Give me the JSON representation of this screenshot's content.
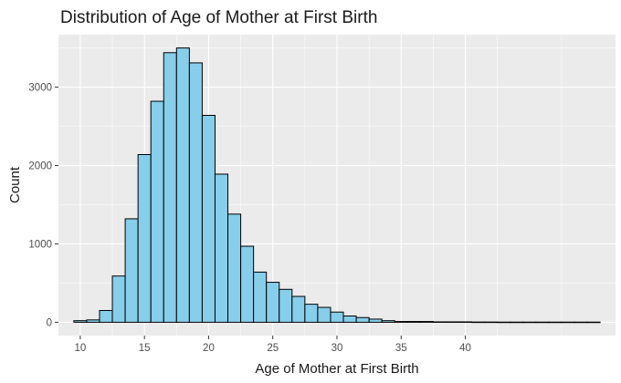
{
  "chart_data": {
    "type": "bar",
    "title": "Distribution of Age of Mother at First Birth",
    "xlabel": "Age of Mother at First Birth",
    "ylabel": "Count",
    "bin_width": 1,
    "bin_centers": [
      10,
      11,
      12,
      13,
      14,
      15,
      16,
      17,
      18,
      19,
      20,
      21,
      22,
      23,
      24,
      25,
      26,
      27,
      28,
      29,
      30,
      31,
      32,
      33,
      34,
      35,
      36,
      37,
      38,
      39,
      40,
      41,
      42,
      43,
      44,
      45,
      46,
      47,
      48,
      49,
      50
    ],
    "values": [
      20,
      30,
      150,
      590,
      1320,
      2140,
      2820,
      3440,
      3500,
      3310,
      2640,
      1890,
      1380,
      970,
      640,
      510,
      420,
      330,
      230,
      190,
      130,
      80,
      60,
      40,
      20,
      10,
      10,
      10,
      5,
      5,
      5,
      3,
      3,
      2,
      2,
      2,
      2,
      2,
      2,
      2,
      2
    ],
    "xlim": [
      8.3,
      51.7
    ],
    "ylim": [
      -170,
      3670
    ],
    "x_ticks": [
      10,
      15,
      20,
      25,
      30,
      35,
      40
    ],
    "y_ticks": [
      0,
      1000,
      2000,
      3000
    ],
    "grid": true,
    "bar_color": "#87ceeb",
    "bar_edge_color": "#000000",
    "panel_background": "#ebebeb"
  }
}
